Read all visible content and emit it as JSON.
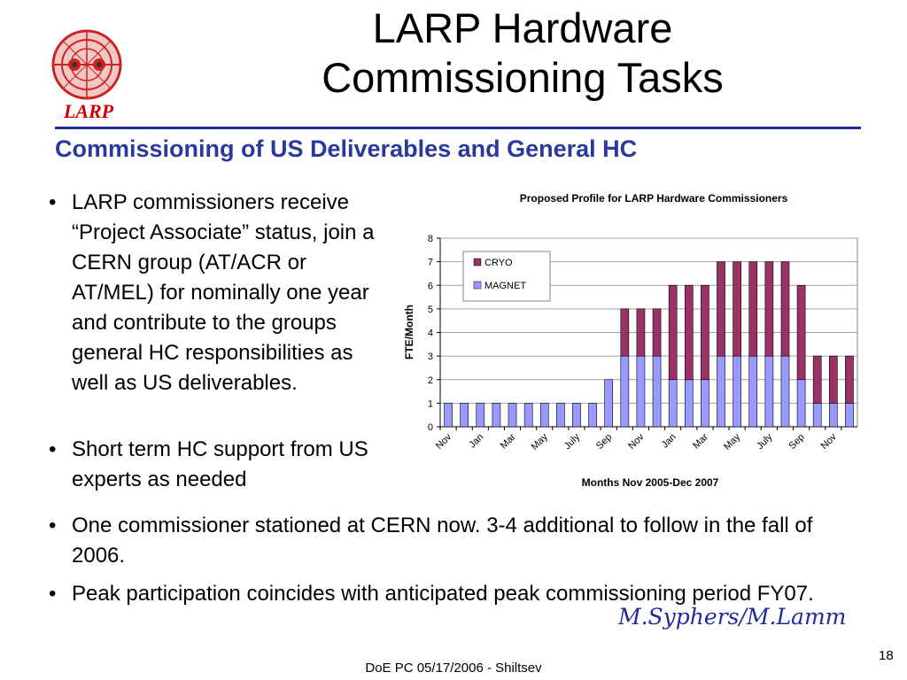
{
  "logo": {
    "text": "LARP",
    "colors": {
      "ring": "#cc2222",
      "fill": "#f4c7c7"
    }
  },
  "title": {
    "line1": "LARP Hardware",
    "line2": "Commissioning Tasks"
  },
  "subtitle": "Commissioning of US Deliverables and General HC",
  "bullets": {
    "b1": "LARP commissioners receive “Project Associate” status, join a  CERN group (AT/ACR or AT/MEL) for nominally one year and contribute to the groups general HC responsibilities as well as US deliverables.",
    "b2": "Short term HC support from US experts as needed",
    "b3": "One commissioner stationed at CERN now.  3-4 additional to follow in the fall of 2006.",
    "b4": "Peak participation coincides with anticipated peak commissioning period FY07."
  },
  "author": "M.Syphers/M.Lamm",
  "footer": "DoE PC 05/17/2006 - Shiltsev",
  "page_number": "18",
  "colors": {
    "title_rule": "#1f2aa0",
    "subtitle": "#2a3a9c",
    "author": "#1f2a9c"
  },
  "chart_data": {
    "type": "bar",
    "stacked": true,
    "title": "Proposed Profile for LARP Hardware Commissioners",
    "xlabel": "Months Nov 2005-Dec 2007",
    "ylabel": "FTE/Month",
    "ylim": [
      0,
      8
    ],
    "yticks": [
      0,
      1,
      2,
      3,
      4,
      5,
      6,
      7,
      8
    ],
    "grid": true,
    "legend_position": "top-left",
    "x_tick_labels": [
      "Nov",
      "Jan",
      "Mar",
      "May",
      "July",
      "Sep",
      "Nov",
      "Jan",
      "Mar",
      "May",
      "July",
      "Sep",
      "Nov"
    ],
    "categories": [
      "Nov 2005",
      "Dec 2005",
      "Jan 2006",
      "Feb 2006",
      "Mar 2006",
      "Apr 2006",
      "May 2006",
      "Jun 2006",
      "Jul 2006",
      "Aug 2006",
      "Sep 2006",
      "Oct 2006",
      "Nov 2006",
      "Dec 2006",
      "Jan 2007",
      "Feb 2007",
      "Mar 2007",
      "Apr 2007",
      "May 2007",
      "Jun 2007",
      "Jul 2007",
      "Aug 2007",
      "Sep 2007",
      "Oct 2007",
      "Nov 2007",
      "Dec 2007"
    ],
    "series": [
      {
        "name": "MAGNET",
        "color": "#9999ff",
        "values": [
          1,
          1,
          1,
          1,
          1,
          1,
          1,
          1,
          1,
          1,
          2,
          3,
          3,
          3,
          2,
          2,
          2,
          3,
          3,
          3,
          3,
          3,
          2,
          1,
          1,
          1
        ]
      },
      {
        "name": "CRYO",
        "color": "#993366",
        "values": [
          0,
          0,
          0,
          0,
          0,
          0,
          0,
          0,
          0,
          0,
          0,
          2,
          2,
          2,
          4,
          4,
          4,
          4,
          4,
          4,
          4,
          4,
          4,
          2,
          2,
          2
        ]
      }
    ],
    "legend_order": [
      "CRYO",
      "MAGNET"
    ]
  }
}
